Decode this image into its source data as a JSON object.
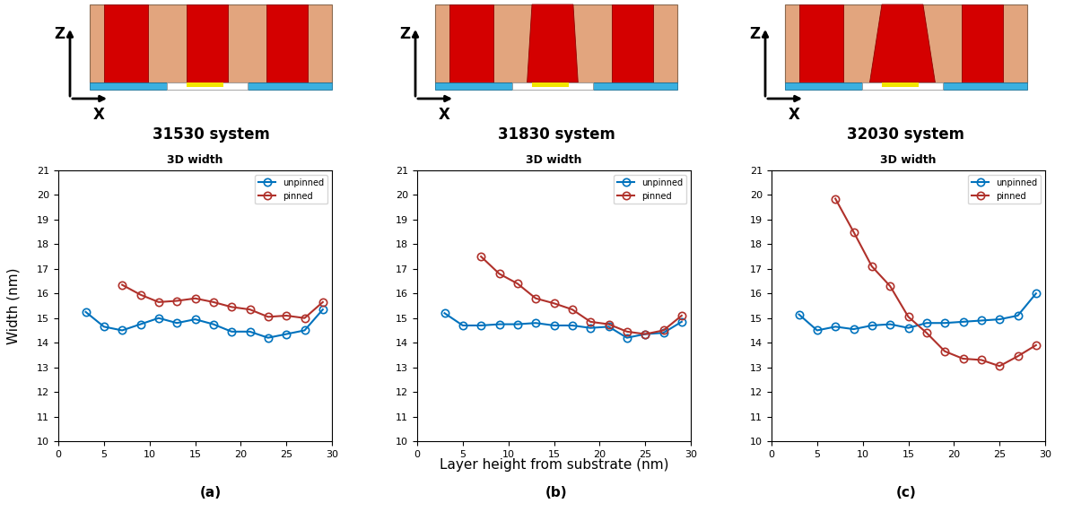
{
  "panels": [
    {
      "label": "(a)",
      "system": "31530 system",
      "arrows": [
        "Z",
        "X"
      ]
    },
    {
      "label": "(b)",
      "system": "31830 system",
      "arrows": [
        "Z",
        "X"
      ]
    },
    {
      "label": "(c)",
      "system": "32030 system",
      "arrows": [
        "Z",
        "X"
      ]
    }
  ],
  "xlabel": "Layer height from substrate (nm)",
  "ylabel": "Width (nm)",
  "chart_data": [
    {
      "type": "line",
      "title": "3D width",
      "xlim": [
        0,
        30
      ],
      "xticks": [
        0,
        5,
        10,
        15,
        20,
        25,
        30
      ],
      "ylim": [
        10,
        21
      ],
      "yticks": [
        10,
        11,
        12,
        13,
        14,
        15,
        16,
        17,
        18,
        19,
        20,
        21
      ],
      "legend": "upper right",
      "marker": "o",
      "grid": false,
      "series": [
        {
          "name": "unpinned",
          "color": "#0072BD",
          "x": [
            3,
            5,
            7,
            9,
            11,
            13,
            15,
            17,
            19,
            21,
            23,
            25,
            27,
            29
          ],
          "values": [
            15.25,
            14.65,
            14.5,
            14.75,
            15.0,
            14.8,
            14.95,
            14.75,
            14.45,
            14.45,
            14.2,
            14.35,
            14.5,
            15.35
          ]
        },
        {
          "name": "pinned",
          "color": "#B0312B",
          "x": [
            7,
            9,
            11,
            13,
            15,
            17,
            19,
            21,
            23,
            25,
            27,
            29
          ],
          "values": [
            16.35,
            15.95,
            15.65,
            15.7,
            15.8,
            15.65,
            15.45,
            15.35,
            15.05,
            15.1,
            15.0,
            15.65
          ]
        }
      ]
    },
    {
      "type": "line",
      "title": "3D width",
      "xlim": [
        0,
        30
      ],
      "xticks": [
        0,
        5,
        10,
        15,
        20,
        25,
        30
      ],
      "ylim": [
        10,
        21
      ],
      "yticks": [
        10,
        11,
        12,
        13,
        14,
        15,
        16,
        17,
        18,
        19,
        20,
        21
      ],
      "legend": "upper right",
      "marker": "o",
      "grid": false,
      "series": [
        {
          "name": "unpinned",
          "color": "#0072BD",
          "x": [
            3,
            5,
            7,
            9,
            11,
            13,
            15,
            17,
            19,
            21,
            23,
            25,
            27,
            29
          ],
          "values": [
            15.2,
            14.7,
            14.7,
            14.75,
            14.75,
            14.8,
            14.7,
            14.7,
            14.6,
            14.65,
            14.2,
            14.35,
            14.4,
            14.85
          ]
        },
        {
          "name": "pinned",
          "color": "#B0312B",
          "x": [
            7,
            9,
            11,
            13,
            15,
            17,
            19,
            21,
            23,
            25,
            27,
            29
          ],
          "values": [
            17.5,
            16.8,
            16.4,
            15.8,
            15.6,
            15.35,
            14.85,
            14.75,
            14.45,
            14.35,
            14.5,
            15.1
          ]
        }
      ]
    },
    {
      "type": "line",
      "title": "3D width",
      "xlim": [
        0,
        30
      ],
      "xticks": [
        0,
        5,
        10,
        15,
        20,
        25,
        30
      ],
      "ylim": [
        10,
        21
      ],
      "yticks": [
        10,
        11,
        12,
        13,
        14,
        15,
        16,
        17,
        18,
        19,
        20,
        21
      ],
      "legend": "upper right",
      "marker": "o",
      "grid": false,
      "series": [
        {
          "name": "unpinned",
          "color": "#0072BD",
          "x": [
            3,
            5,
            7,
            9,
            11,
            13,
            15,
            17,
            19,
            21,
            23,
            25,
            27,
            29
          ],
          "values": [
            15.15,
            14.5,
            14.65,
            14.55,
            14.7,
            14.75,
            14.6,
            14.8,
            14.8,
            14.85,
            14.9,
            14.95,
            15.1,
            16.0
          ]
        },
        {
          "name": "pinned",
          "color": "#B0312B",
          "x": [
            7,
            9,
            11,
            13,
            15,
            17,
            19,
            21,
            23,
            25,
            27,
            29
          ],
          "values": [
            19.85,
            18.5,
            17.1,
            16.3,
            15.05,
            14.4,
            13.65,
            13.35,
            13.3,
            13.05,
            13.45,
            13.9
          ]
        }
      ]
    }
  ]
}
